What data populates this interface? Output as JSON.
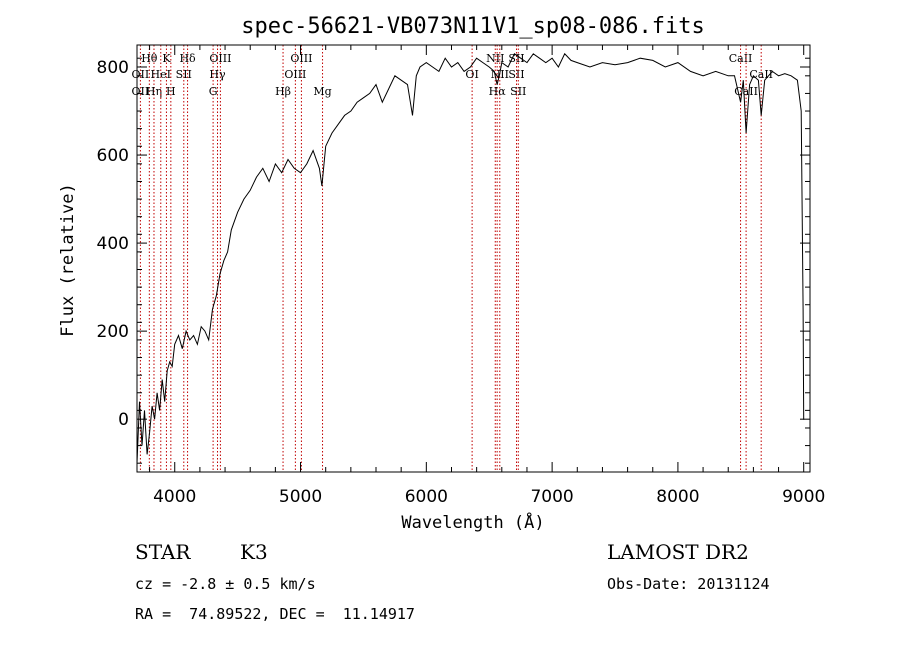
{
  "chart_data": {
    "type": "line",
    "title": "spec-56621-VB073N11V1_sp08-086.fits",
    "xlabel": "Wavelength (Å)",
    "ylabel": "Flux (relative)",
    "xlim": [
      3700,
      9050
    ],
    "ylim": [
      -120,
      850
    ],
    "xticks": [
      4000,
      5000,
      6000,
      7000,
      8000,
      9000
    ],
    "yticks": [
      0,
      200,
      400,
      600,
      800
    ],
    "grid": false,
    "series": [
      {
        "x": [
          3700,
          3720,
          3740,
          3760,
          3780,
          3800,
          3820,
          3840,
          3860,
          3880,
          3900,
          3920,
          3940,
          3960,
          3980,
          4000,
          4030,
          4060,
          4090,
          4120,
          4150,
          4180,
          4210,
          4240,
          4270,
          4300,
          4330,
          4360,
          4390,
          4420,
          4450,
          4500,
          4550,
          4600,
          4650,
          4700,
          4750,
          4800,
          4850,
          4900,
          4950,
          5000,
          5050,
          5100,
          5150,
          5170,
          5200,
          5250,
          5300,
          5350,
          5400,
          5450,
          5500,
          5550,
          5600,
          5650,
          5700,
          5750,
          5800,
          5850,
          5890,
          5920,
          5950,
          6000,
          6050,
          6100,
          6150,
          6200,
          6250,
          6300,
          6350,
          6400,
          6450,
          6500,
          6540,
          6563,
          6580,
          6600,
          6650,
          6700,
          6750,
          6800,
          6850,
          6900,
          6950,
          7000,
          7050,
          7100,
          7150,
          7200,
          7300,
          7400,
          7500,
          7600,
          7700,
          7800,
          7900,
          8000,
          8100,
          8200,
          8300,
          8400,
          8450,
          8498,
          8520,
          8542,
          8570,
          8600,
          8640,
          8662,
          8690,
          8750,
          8800,
          8850,
          8900,
          8950,
          8980,
          8995,
          9000,
          9005
        ],
        "y": [
          -100,
          40,
          -60,
          20,
          -80,
          -30,
          30,
          0,
          60,
          20,
          90,
          40,
          110,
          130,
          120,
          170,
          190,
          160,
          200,
          180,
          190,
          170,
          210,
          200,
          180,
          250,
          280,
          330,
          360,
          380,
          430,
          470,
          500,
          520,
          550,
          570,
          540,
          580,
          560,
          590,
          570,
          560,
          580,
          610,
          570,
          530,
          620,
          650,
          670,
          690,
          700,
          720,
          730,
          740,
          760,
          720,
          750,
          780,
          770,
          760,
          690,
          780,
          800,
          810,
          800,
          790,
          820,
          800,
          810,
          790,
          800,
          820,
          810,
          800,
          790,
          760,
          780,
          810,
          800,
          830,
          820,
          810,
          830,
          820,
          810,
          820,
          800,
          830,
          815,
          810,
          800,
          810,
          805,
          810,
          820,
          815,
          800,
          810,
          790,
          780,
          790,
          780,
          780,
          720,
          770,
          650,
          760,
          780,
          770,
          690,
          770,
          790,
          780,
          785,
          780,
          770,
          700,
          250,
          0,
          0
        ]
      }
    ],
    "lines": [
      {
        "label": "Hθ",
        "x": 3798,
        "row": 1
      },
      {
        "label": "OII",
        "x": 3727,
        "row": 2
      },
      {
        "label": "OII",
        "x": 3727,
        "row": 3
      },
      {
        "label": "Hη",
        "x": 3835,
        "row": 3
      },
      {
        "label": "K",
        "x": 3934,
        "row": 1
      },
      {
        "label": "HeI",
        "x": 3889,
        "row": 2
      },
      {
        "label": "H",
        "x": 3969,
        "row": 3
      },
      {
        "label": "Hδ",
        "x": 4102,
        "row": 1
      },
      {
        "label": "SII",
        "x": 4072,
        "row": 2
      },
      {
        "label": "OIII",
        "x": 4363,
        "row": 1
      },
      {
        "label": "Hγ",
        "x": 4340,
        "row": 2
      },
      {
        "label": "G",
        "x": 4305,
        "row": 3
      },
      {
        "label": "OIII",
        "x": 5007,
        "row": 1
      },
      {
        "label": "OIII",
        "x": 4959,
        "row": 2
      },
      {
        "label": "Hβ",
        "x": 4861,
        "row": 3
      },
      {
        "label": "Mg",
        "x": 5175,
        "row": 3
      },
      {
        "label": "OI",
        "x": 6364,
        "row": 2
      },
      {
        "label": "NII",
        "x": 6548,
        "row": 1
      },
      {
        "label": "NII",
        "x": 6584,
        "row": 2
      },
      {
        "label": "Hα",
        "x": 6563,
        "row": 3
      },
      {
        "label": "SII",
        "x": 6717,
        "row": 1
      },
      {
        "label": "SII",
        "x": 6717,
        "row": 2
      },
      {
        "label": "SII",
        "x": 6731,
        "row": 3
      },
      {
        "label": "CaII",
        "x": 8498,
        "row": 1
      },
      {
        "label": "CaII",
        "x": 8542,
        "row": 3
      },
      {
        "label": "CaII",
        "x": 8662,
        "row": 2
      }
    ]
  },
  "info": {
    "class": "STAR",
    "subclass": "K3",
    "survey": "LAMOST DR2",
    "cz": "cz = -2.8 ± 0.5 km/s",
    "obs_date": "Obs-Date: 20131124",
    "radec": "RA =  74.89522, DEC =  11.14917"
  }
}
